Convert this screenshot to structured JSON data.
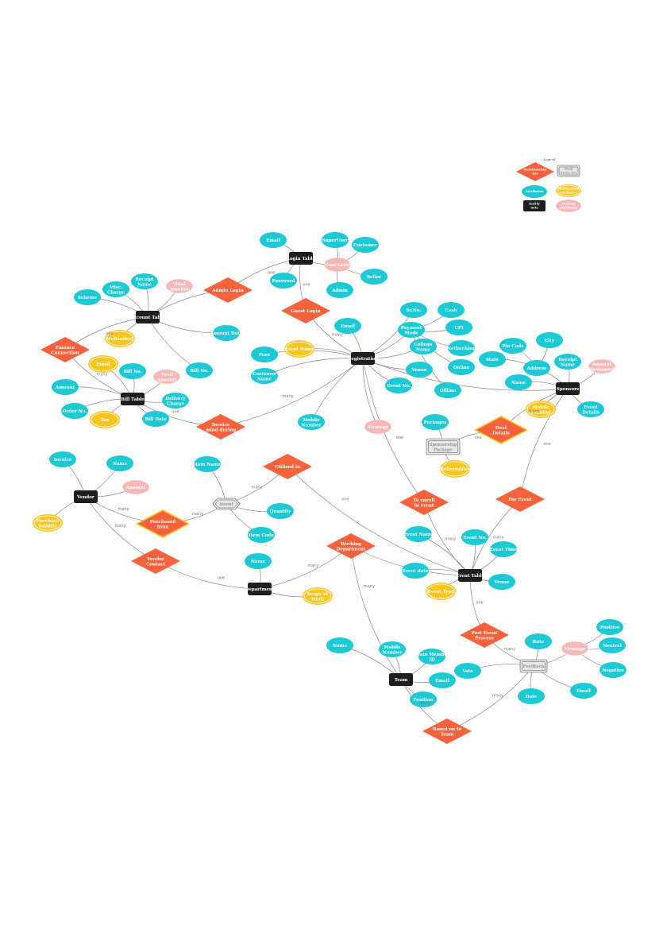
{
  "legend": {
    "title": "Legend",
    "items": {
      "relationship": "Relationship Set",
      "weak": "Weak Entity Set",
      "attribute": "Attributes",
      "multivalued": "Multivalued Attributes",
      "entity": "Entity Sets",
      "derived": "Derived Attributes"
    }
  },
  "colors": {
    "entity": "#1e1e1e",
    "attribute": "#1cc9d4",
    "relationship": "#f7623e",
    "multivalued": "#f8c521",
    "derived": "#f9b8b8",
    "weak": "#e6e6e6"
  },
  "entities": [
    {
      "id": "login_table",
      "label": "Login Table"
    },
    {
      "id": "account_table",
      "label": "Account Table"
    },
    {
      "id": "registration",
      "label": "Registration"
    },
    {
      "id": "bill_table",
      "label": "Bill Table"
    },
    {
      "id": "sponsors",
      "label": "Sponsors"
    },
    {
      "id": "vendor",
      "label": "Vendor"
    },
    {
      "id": "department",
      "label": "Department"
    },
    {
      "id": "event_table",
      "label": "Event Table"
    },
    {
      "id": "team",
      "label": "Team"
    }
  ],
  "weak_entities": [
    {
      "id": "sponsorship_package",
      "label": "Sponsorship Package"
    },
    {
      "id": "invent",
      "label": "Invent"
    },
    {
      "id": "feedback",
      "label": "Feedback"
    }
  ],
  "relationships": [
    {
      "id": "admin_login",
      "label": "Admin Login"
    },
    {
      "id": "guest_login",
      "label": "Guest Login"
    },
    {
      "id": "finance_connection",
      "label": "Finance Connection"
    },
    {
      "id": "invoice_mind",
      "label": "Invoice mind during"
    },
    {
      "id": "deal_details",
      "label": "Deal Details"
    },
    {
      "id": "for_event",
      "label": "For Event"
    },
    {
      "id": "to_enroll",
      "label": "To enroll in event"
    },
    {
      "id": "utilized_in",
      "label": "Utilized in"
    },
    {
      "id": "purchased_from",
      "label": "Purchased from"
    },
    {
      "id": "vendor_contact",
      "label": "Vendor Contact"
    },
    {
      "id": "working_department",
      "label": "Working Department"
    },
    {
      "id": "post_event",
      "label": "Post Event Process"
    },
    {
      "id": "based_on_team",
      "label": "Based on to Team"
    }
  ],
  "attributes": [
    {
      "id": "a_email_login",
      "label": "Email"
    },
    {
      "id": "a_superuser",
      "label": "SuperUser"
    },
    {
      "id": "a_customer",
      "label": "Customer"
    },
    {
      "id": "a_password",
      "label": "Password"
    },
    {
      "id": "a_seller",
      "label": "Seller"
    },
    {
      "id": "a_admin",
      "label": "Admin"
    },
    {
      "id": "a_misc_charge",
      "label": "Misc. Charge"
    },
    {
      "id": "a_receipt_name",
      "label": "Receipt Name"
    },
    {
      "id": "a_scheme",
      "label": "Scheme"
    },
    {
      "id": "a_amount_date",
      "label": "Amount Date"
    },
    {
      "id": "a_bill_no_acc",
      "label": "Bill No."
    },
    {
      "id": "a_email_reg",
      "label": "Email"
    },
    {
      "id": "a_fees",
      "label": "Fees"
    },
    {
      "id": "a_customer_name",
      "label": "Customer Name"
    },
    {
      "id": "a_mobile_number",
      "label": "Mobile Number"
    },
    {
      "id": "a_srno",
      "label": "Sr.No."
    },
    {
      "id": "a_cash",
      "label": "Cash"
    },
    {
      "id": "a_payment_mode",
      "label": "Payment Mode"
    },
    {
      "id": "a_upi",
      "label": "UPI"
    },
    {
      "id": "a_college_name",
      "label": "College Name"
    },
    {
      "id": "a_netbanking",
      "label": "Netbanking"
    },
    {
      "id": "a_venue_reg",
      "label": "Venue"
    },
    {
      "id": "a_online",
      "label": "Online"
    },
    {
      "id": "a_event_no_reg",
      "label": "Event No."
    },
    {
      "id": "a_offline",
      "label": "Offline"
    },
    {
      "id": "a_bill_no_bill",
      "label": "Bill No."
    },
    {
      "id": "a_amount",
      "label": "Amount"
    },
    {
      "id": "a_order_no",
      "label": "Order No."
    },
    {
      "id": "a_delivery_charge",
      "label": "Delivery Charge"
    },
    {
      "id": "a_bill_date",
      "label": "Bill Date"
    },
    {
      "id": "a_pin_code",
      "label": "Pin Code"
    },
    {
      "id": "a_city",
      "label": "City"
    },
    {
      "id": "a_state",
      "label": "State"
    },
    {
      "id": "a_address",
      "label": "Address"
    },
    {
      "id": "a_receipt_name_sp",
      "label": "Receipt Name"
    },
    {
      "id": "a_name_sp",
      "label": "Name"
    },
    {
      "id": "a_event_details",
      "label": "Event Details"
    },
    {
      "id": "a_packages",
      "label": "Packages"
    },
    {
      "id": "a_invoice",
      "label": "Invoice"
    },
    {
      "id": "a_name_vendor",
      "label": "Name"
    },
    {
      "id": "a_item_name",
      "label": "Item Name"
    },
    {
      "id": "a_quantity",
      "label": "Quantity"
    },
    {
      "id": "a_item_code",
      "label": "Item Code"
    },
    {
      "id": "a_name_dept",
      "label": "Name"
    },
    {
      "id": "a_event_name",
      "label": "Event Name"
    },
    {
      "id": "a_event_no_ev",
      "label": "Event No."
    },
    {
      "id": "a_event_time",
      "label": "Event Time"
    },
    {
      "id": "a_event_date",
      "label": "Event date"
    },
    {
      "id": "a_venue_ev",
      "label": "Venue"
    },
    {
      "id": "a_name_team",
      "label": "Name"
    },
    {
      "id": "a_mobile_team",
      "label": "Mobile Number"
    },
    {
      "id": "a_team_member_id",
      "label": "Team Member ID"
    },
    {
      "id": "a_vote",
      "label": "Vote"
    },
    {
      "id": "a_email_team",
      "label": "Email"
    },
    {
      "id": "a_position",
      "label": "Position"
    },
    {
      "id": "a_rate",
      "label": "Rate"
    },
    {
      "id": "a_positive",
      "label": "Positive"
    },
    {
      "id": "a_neutral",
      "label": "Neutral"
    },
    {
      "id": "a_negative",
      "label": "Negative"
    },
    {
      "id": "a_date_fb",
      "label": "Date"
    },
    {
      "id": "a_email_fb",
      "label": "Email"
    }
  ],
  "multivalued_attributes": [
    {
      "id": "m_multiselect",
      "label": "Multiselect"
    },
    {
      "id": "m_email_bill",
      "label": "Email"
    },
    {
      "id": "m_tax",
      "label": "Tax"
    },
    {
      "id": "m_event_name_reg",
      "label": "Event Name"
    },
    {
      "id": "m_mobile_sp",
      "label": "Mobile Number"
    },
    {
      "id": "m_deliverables",
      "label": "Deliverables"
    },
    {
      "id": "m_purchase_validity",
      "label": "Purchase Validity"
    },
    {
      "id": "m_scope_work",
      "label": "Scope of Work"
    },
    {
      "id": "m_event_type",
      "label": "Event Type"
    }
  ],
  "derived_attributes": [
    {
      "id": "d_user_level",
      "label": "User Level"
    },
    {
      "id": "d_total_amount",
      "label": "Total Amount"
    },
    {
      "id": "d_total_amount_bill",
      "label": "Total Amount"
    },
    {
      "id": "d_strategy",
      "label": "Strategy"
    },
    {
      "id": "d_amount_sp",
      "label": "Amount Sponsored"
    },
    {
      "id": "d_amount_vendor",
      "label": "Amount"
    },
    {
      "id": "d_message",
      "label": "Message"
    }
  ],
  "cardinalities": {
    "one": "one",
    "many": "many"
  }
}
